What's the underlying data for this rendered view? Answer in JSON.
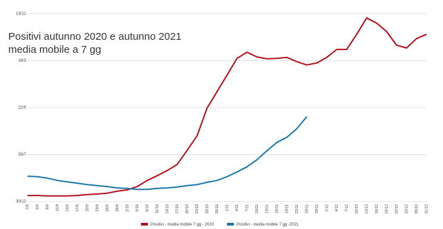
{
  "chart_data": {
    "type": "line",
    "title": [
      "Positivi autunno 2020 e autunno 2021",
      "media mobile a 7 gg"
    ],
    "categories": [
      "2/9",
      "5/9",
      "8/9",
      "11/9",
      "14/9",
      "17/9",
      "20/9",
      "23/9",
      "26/9",
      "29/9",
      "2/10",
      "5/10",
      "8/10",
      "11/10",
      "14/10",
      "17/10",
      "20/10",
      "23/10",
      "26/10",
      "29/10",
      "1/11",
      "4/11",
      "7/11",
      "10/11",
      "13/11",
      "16/11",
      "19/11",
      "22/11",
      "25/11",
      "28/11",
      "1/12",
      "4/12",
      "7/12",
      "10/12",
      "13/12",
      "16/12",
      "19/12",
      "22/12",
      "25/12",
      "28/12",
      "31/12"
    ],
    "series": [
      {
        "name": "Positivi - media mobile 7 gg - 2020",
        "color": "#b3121c",
        "values": [
          0.13,
          0.13,
          0.12,
          0.12,
          0.12,
          0.13,
          0.15,
          0.16,
          0.18,
          0.22,
          0.25,
          0.32,
          0.45,
          0.55,
          0.66,
          0.79,
          1.09,
          1.4,
          1.99,
          2.34,
          2.69,
          3.05,
          3.18,
          3.08,
          3.04,
          3.05,
          3.07,
          2.98,
          2.91,
          2.95,
          3.07,
          3.24,
          3.24,
          3.56,
          3.91,
          3.8,
          3.62,
          3.33,
          3.27,
          3.47,
          3.56
        ]
      },
      {
        "name": "Positivi - media mobile 7 gg -2021",
        "color": "#1b78a8",
        "values": [
          0.54,
          0.53,
          0.5,
          0.45,
          0.42,
          0.39,
          0.36,
          0.34,
          0.32,
          0.29,
          0.28,
          0.26,
          0.26,
          0.28,
          0.29,
          0.31,
          0.34,
          0.36,
          0.41,
          0.45,
          0.53,
          0.63,
          0.74,
          0.89,
          1.08,
          1.26,
          1.37,
          1.55,
          1.81,
          null,
          null,
          null,
          null,
          null,
          null,
          null,
          null,
          null,
          null,
          null,
          null
        ]
      }
    ],
    "ylim": [
      0,
      4
    ],
    "yticks": [
      {
        "value": 0,
        "label": "30/12"
      },
      {
        "value": 1,
        "label": "26/7"
      },
      {
        "value": 2,
        "label": "22/5"
      },
      {
        "value": 3,
        "label": "18/3"
      },
      {
        "value": 4,
        "label": "13/12"
      }
    ],
    "grid": true,
    "legend": "bottom"
  }
}
